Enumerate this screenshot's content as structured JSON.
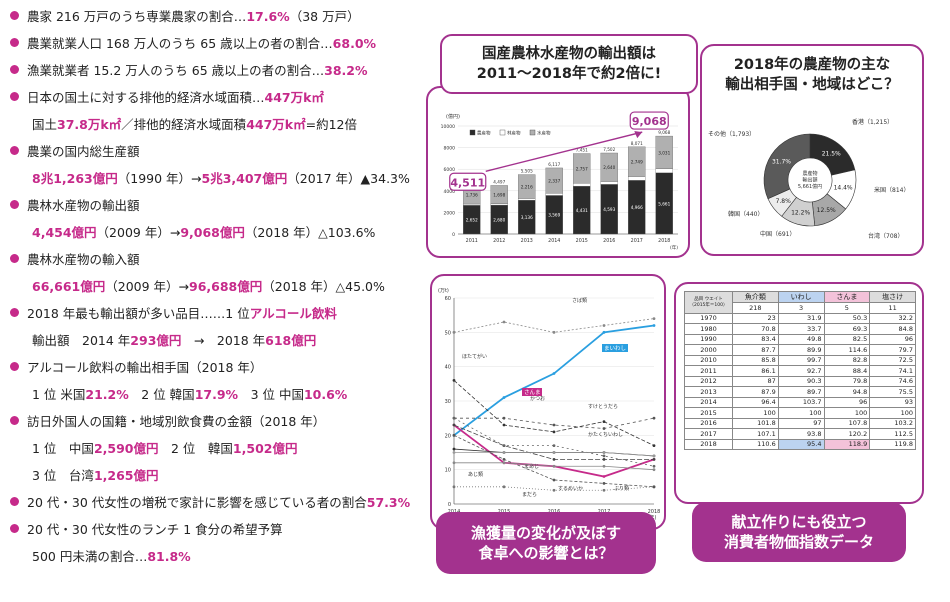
{
  "facts": [
    {
      "segments": [
        "農家 216 万戸のうち専業農家の割合…",
        "17.6%",
        "（38 万戸）"
      ],
      "bullet": true
    },
    {
      "segments": [
        "農業就業人口 168 万人のうち 65 歳以上の者の割合…",
        "68.0%"
      ],
      "bullet": true
    },
    {
      "segments": [
        "漁業就業者 15.2 万人のうち 65 歳以上の者の割合…",
        "38.2%"
      ],
      "bullet": true
    },
    {
      "segments": [
        "日本の国土に対する排他的経済水域面積…",
        "447万k㎡"
      ],
      "bullet": true
    },
    {
      "segments": [
        "国土 ",
        "37.8万k㎡",
        "／排他的経済水域面積 ",
        "447万k㎡",
        "=約12倍"
      ],
      "bullet": false
    },
    {
      "segments": [
        "農業の国内総生産額"
      ],
      "bullet": true
    },
    {
      "segments": [
        "8兆1,263億円",
        "（1990 年）→ ",
        "5兆3,407億円",
        "（2017 年）▲34.3%"
      ],
      "bullet": false
    },
    {
      "segments": [
        "農林水産物の輸出額"
      ],
      "bullet": true
    },
    {
      "segments": [
        "4,454億円",
        "（2009 年）→ ",
        "9,068億円",
        "（2018 年）△103.6%"
      ],
      "bullet": false
    },
    {
      "segments": [
        "農林水産物の輸入額"
      ],
      "bullet": true
    },
    {
      "segments": [
        "66,661億円",
        "（2009 年）→ ",
        "96,688億円",
        "（2018 年）△45.0%"
      ],
      "bullet": false
    },
    {
      "segments": [
        "2018 年最も輸出額が多い品目……1 位 ",
        "アルコール飲料"
      ],
      "bullet": true
    },
    {
      "segments": [
        "輸出額　2014 年 ",
        "293億円",
        "　→　2018 年 ",
        "618億円"
      ],
      "bullet": false
    },
    {
      "segments": [
        "アルコール飲料の輸出相手国（2018 年）"
      ],
      "bullet": true
    },
    {
      "segments": [
        "1 位 米国 ",
        "21.2%",
        "　2 位 韓国 ",
        "17.9%",
        "　3 位 中国 ",
        "10.6%"
      ],
      "bullet": false
    },
    {
      "segments": [
        "訪日外国人の国籍・地域別飲食費の金額（2018 年）"
      ],
      "bullet": true
    },
    {
      "segments": [
        "1 位　中国 ",
        "2,590億円",
        "　2 位　韓国 ",
        "1,502億円"
      ],
      "bullet": false
    },
    {
      "segments": [
        "3 位　台湾 ",
        "1,265億円"
      ],
      "bullet": false
    },
    {
      "segments": [
        "20 代・30 代女性の増税で家計に影響を感じている者の割合 ",
        "57.3%"
      ],
      "bullet": true
    },
    {
      "segments": [
        "20 代・30 代女性のランチ 1 食分の希望予算"
      ],
      "bullet": true
    },
    {
      "segments": [
        "500 円未満の割合…",
        "81.8%"
      ],
      "bullet": false
    }
  ],
  "panels": {
    "exports": {
      "title_line1": "国産農林水産物の輸出額は",
      "title_line2": "2011～2018年で約2倍に!",
      "callout_start": "4,511",
      "callout_end": "9,068"
    },
    "partners": {
      "title_line1": "2018年の農産物の主な",
      "title_line2": "輸出相手国・地域はどこ？"
    },
    "fish": {
      "title_line1": "漁獲量の変化が及ぼす",
      "title_line2": "食卓への影響とは？"
    },
    "cpi": {
      "title_line1": "献立作りにも役立つ",
      "title_line2": "消費者物価指数データ"
    }
  },
  "chart_data": [
    {
      "type": "bar",
      "ylabel": "(億円)",
      "categories": [
        "2011",
        "2012",
        "2013",
        "2014",
        "2015",
        "2016",
        "2017",
        "2018"
      ],
      "series": [
        {
          "name": "農産物",
          "values": [
            2652,
            2680,
            3136,
            3569,
            4431,
            4593,
            4966,
            5661
          ]
        },
        {
          "name": "林産物",
          "values": [
            123,
            118,
            152,
            211,
            263,
            268,
            355,
            376
          ]
        },
        {
          "name": "水産物",
          "values": [
            1736,
            1698,
            2216,
            2337,
            2757,
            2640,
            2749,
            3031
          ]
        }
      ],
      "totals": [
        4511,
        4497,
        5505,
        6117,
        7451,
        7502,
        8071,
        9068
      ],
      "xnote": "(年)"
    },
    {
      "type": "pie",
      "center_label": [
        "農産物",
        "輸出額",
        "5,661億円"
      ],
      "slices": [
        {
          "label": "香港",
          "value": 1215,
          "percent": 21.5,
          "color": "#2b2b2b"
        },
        {
          "label": "米国",
          "value": 814,
          "percent": 14.4,
          "color": "#ffffff"
        },
        {
          "label": "台湾",
          "value": 708,
          "percent": 12.5,
          "color": "#a8a8a8"
        },
        {
          "label": "中国",
          "value": 691,
          "percent": 12.2,
          "color": "#d0d0d0"
        },
        {
          "label": "韓国",
          "value": 440,
          "percent": 7.8,
          "color": "#ececec"
        },
        {
          "label": "その他",
          "value": 1793,
          "percent": 31.7,
          "color": "#5a5a5a"
        }
      ]
    },
    {
      "type": "line",
      "ylabel": "(万t)",
      "x": [
        2014,
        2015,
        2016,
        2017,
        2018
      ],
      "ylim": [
        0,
        60
      ],
      "series": [
        {
          "name": "さば類",
          "values": [
            50,
            53,
            50,
            52,
            54
          ],
          "color": "#888888",
          "dash": "2,2"
        },
        {
          "name": "まいわし",
          "values": [
            20,
            31,
            38,
            50,
            52
          ],
          "color": "#2a9fe0",
          "dash": ""
        },
        {
          "name": "ほたてがい",
          "values": [
            36,
            23,
            21,
            24,
            17
          ],
          "color": "#333333",
          "dash": "4,2"
        },
        {
          "name": "さんま",
          "values": [
            23,
            12,
            11,
            8,
            13
          ],
          "color": "#c62a8a",
          "dash": ""
        },
        {
          "name": "かつお",
          "values": [
            25,
            25,
            23,
            22,
            25
          ],
          "color": "#555555",
          "dash": "3,3"
        },
        {
          "name": "すけとうだら",
          "values": [
            23,
            17,
            13,
            13,
            13
          ],
          "color": "#444444",
          "dash": "5,2"
        },
        {
          "name": "かたくちいわし",
          "values": [
            25,
            17,
            17,
            14,
            11
          ],
          "color": "#666666",
          "dash": "2,3"
        },
        {
          "name": "あじ類",
          "values": [
            16,
            15,
            15,
            15,
            14
          ],
          "color": "#333333",
          "dash": ""
        },
        {
          "name": "まあじ",
          "values": [
            15,
            15,
            15,
            15,
            14
          ],
          "color": "#999999",
          "dash": ""
        },
        {
          "name": "まだら",
          "values": [
            5,
            5,
            4,
            4,
            5
          ],
          "color": "#777777",
          "dash": "1,2"
        },
        {
          "name": "するめいか",
          "values": [
            20,
            13,
            7,
            6,
            5
          ],
          "color": "#555555",
          "dash": "3,2"
        },
        {
          "name": "ぶり類",
          "values": [
            12,
            12,
            11,
            11,
            10
          ],
          "color": "#888888",
          "dash": ""
        }
      ],
      "xnote": "(年)"
    },
    {
      "type": "table",
      "header_note": "品目 ウエイト（2015年＝100）",
      "columns": [
        "魚介類",
        "いわし",
        "さんま",
        "塩さけ"
      ],
      "weights": [
        "218",
        "3",
        "5",
        "11"
      ],
      "rows": [
        [
          "1970",
          "23",
          "31.9",
          "50.3",
          "32.2"
        ],
        [
          "1980",
          "70.8",
          "33.7",
          "69.3",
          "84.8"
        ],
        [
          "1990",
          "83.4",
          "49.8",
          "82.5",
          "96"
        ],
        [
          "2000",
          "87.7",
          "89.9",
          "114.6",
          "79.7"
        ],
        [
          "2010",
          "85.8",
          "99.7",
          "82.8",
          "72.5"
        ],
        [
          "2011",
          "86.1",
          "92.7",
          "88.4",
          "74.1"
        ],
        [
          "2012",
          "87",
          "90.3",
          "79.8",
          "74.6"
        ],
        [
          "2013",
          "87.9",
          "89.7",
          "94.8",
          "75.5"
        ],
        [
          "2014",
          "96.4",
          "103.7",
          "96",
          "93"
        ],
        [
          "2015",
          "100",
          "100",
          "100",
          "100"
        ],
        [
          "2016",
          "101.8",
          "97",
          "107.8",
          "103.2"
        ],
        [
          "2017",
          "107.1",
          "93.8",
          "120.2",
          "112.5"
        ],
        [
          "2018",
          "110.6",
          "95.4",
          "118.9",
          "119.8"
        ]
      ]
    }
  ]
}
